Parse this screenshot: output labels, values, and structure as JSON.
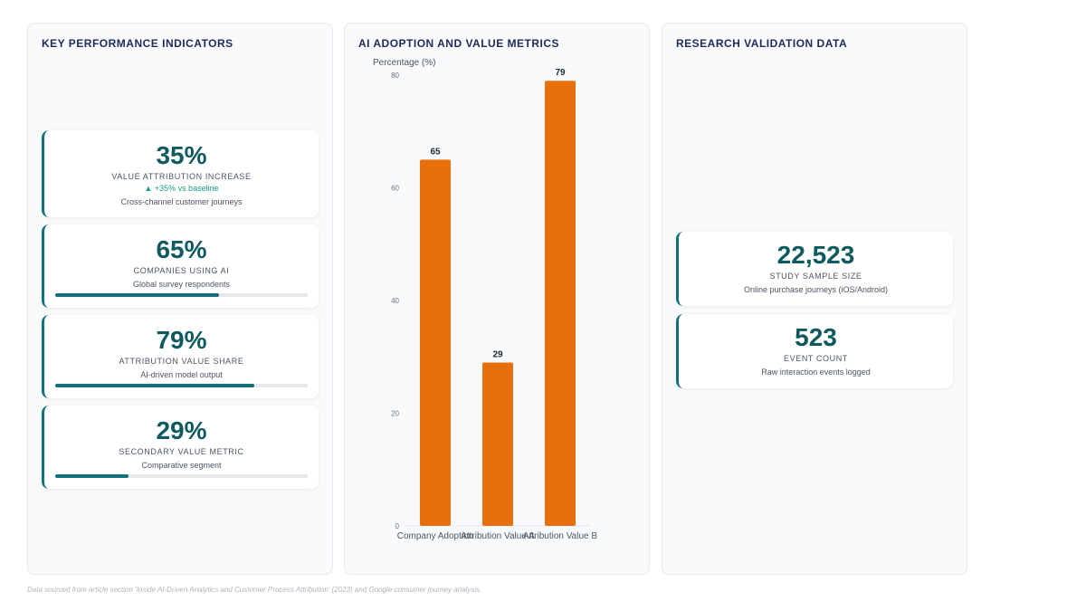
{
  "kpi_panel": {
    "title": "KEY PERFORMANCE INDICATORS",
    "cards": [
      {
        "value": "35%",
        "label": "VALUE ATTRIBUTION INCREASE",
        "delta": "▲ +35% vs baseline",
        "sub": "Cross-channel customer journeys"
      },
      {
        "value": "65%",
        "label": "COMPANIES USING AI",
        "sub": "Global survey respondents",
        "progress": 0.65
      },
      {
        "value": "79%",
        "label": "ATTRIBUTION VALUE SHARE",
        "sub": "AI-driven model output",
        "progress": 0.79
      },
      {
        "value": "29%",
        "label": "SECONDARY VALUE METRIC",
        "sub": "Comparative segment",
        "progress": 0.29
      }
    ]
  },
  "chart_panel": {
    "title": "AI ADOPTION AND VALUE METRICS"
  },
  "research_panel": {
    "title": "RESEARCH VALIDATION DATA",
    "cards": [
      {
        "value": "22,523",
        "label": "STUDY SAMPLE SIZE",
        "sub": "Online purchase journeys (iOS/Android)"
      },
      {
        "value": "523",
        "label": "EVENT COUNT",
        "sub": "Raw interaction events logged"
      }
    ]
  },
  "footer": "Data sourced from article section 'Inside AI-Driven Analytics and Customer Process Attribution' (2023) and Google consumer journey analysis.",
  "chart_data": {
    "type": "bar",
    "title": "",
    "ylabel": "Percentage (%)",
    "xlabel": "",
    "categories": [
      "Company Adoption",
      "Attribution Value A",
      "Attribution Value B"
    ],
    "values": [
      65,
      29,
      79
    ],
    "ylim": [
      0,
      80
    ],
    "yticks": [
      0,
      20,
      40,
      60,
      80
    ],
    "grid": false,
    "bar_color": "#e8700c"
  }
}
